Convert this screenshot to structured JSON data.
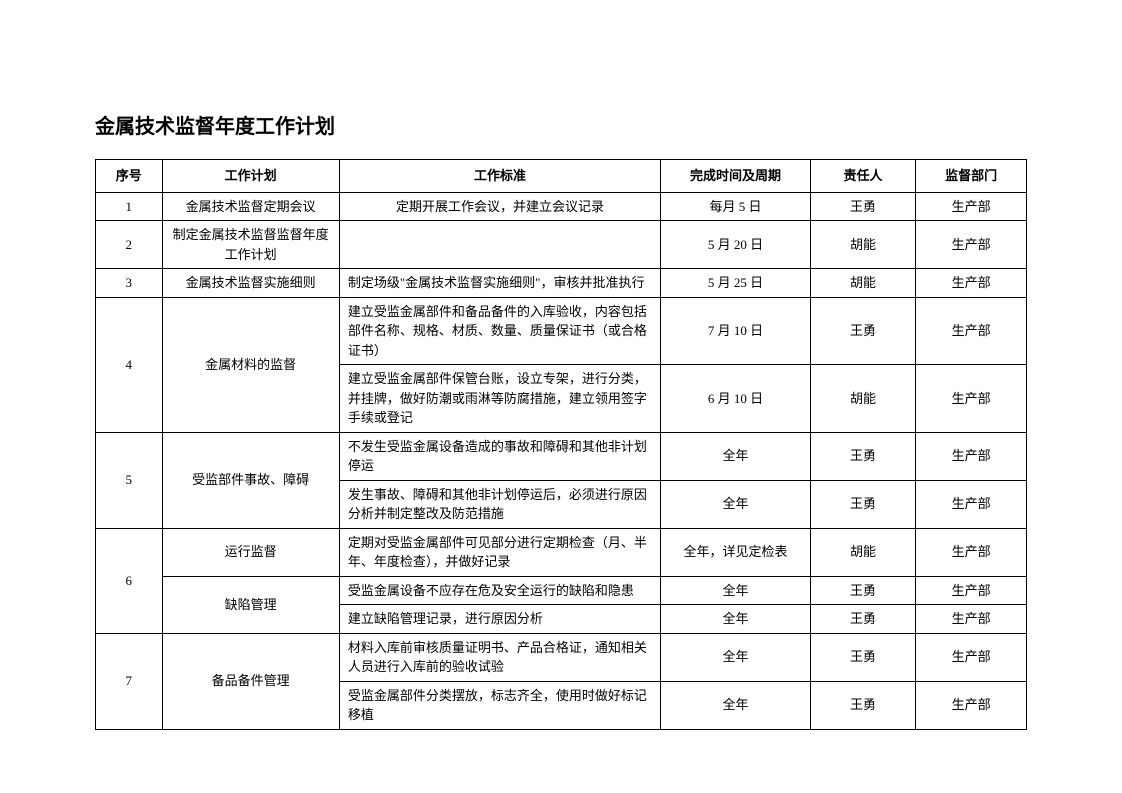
{
  "title": "金属技术监督年度工作计划",
  "headers": {
    "seq": "序号",
    "plan": "工作计划",
    "standard": "工作标准",
    "time": "完成时间及周期",
    "person": "责任人",
    "dept": "监督部门"
  },
  "rows": {
    "r1": {
      "seq": "1",
      "plan": "金属技术监督定期会议",
      "std": "定期开展工作会议，并建立会议记录",
      "time": "每月 5 日",
      "person": "王勇",
      "dept": "生产部"
    },
    "r2": {
      "seq": "2",
      "plan": "制定金属技术监督监督年度工作计划",
      "std": "",
      "time": "5 月 20 日",
      "person": "胡能",
      "dept": "生产部"
    },
    "r3": {
      "seq": "3",
      "plan": "金属技术监督实施细则",
      "std": "制定场级\"金属技术监督实施细则\"，审核并批准执行",
      "time": "5 月 25 日",
      "person": "胡能",
      "dept": "生产部"
    },
    "r4": {
      "seq": "4",
      "plan": "金属材料的监督",
      "a": {
        "std": "建立受监金属部件和备品备件的入库验收，内容包括部件名称、规格、材质、数量、质量保证书（或合格证书）",
        "time": "7 月 10 日",
        "person": "王勇",
        "dept": "生产部"
      },
      "b": {
        "std": "建立受监金属部件保管台账，设立专架，进行分类，并挂牌，做好防潮或雨淋等防腐措施，建立领用签字手续或登记",
        "time": "6 月 10 日",
        "person": "胡能",
        "dept": "生产部"
      }
    },
    "r5": {
      "seq": "5",
      "plan": "受监部件事故、障碍",
      "a": {
        "std": "不发生受监金属设备造成的事故和障碍和其他非计划停运",
        "time": "全年",
        "person": "王勇",
        "dept": "生产部"
      },
      "b": {
        "std": "发生事故、障碍和其他非计划停运后，必须进行原因分析并制定整改及防范措施",
        "time": "全年",
        "person": "王勇",
        "dept": "生产部"
      }
    },
    "r6": {
      "seq": "6",
      "plan_a": "运行监督",
      "plan_b": "缺陷管理",
      "a": {
        "std": "定期对受监金属部件可见部分进行定期检查（月、半年、年度检查），并做好记录",
        "time": "全年，详见定检表",
        "person": "胡能",
        "dept": "生产部"
      },
      "b": {
        "std": "受监金属设备不应存在危及安全运行的缺陷和隐患",
        "time": "全年",
        "person": "王勇",
        "dept": "生产部"
      },
      "c": {
        "std": "建立缺陷管理记录，进行原因分析",
        "time": "全年",
        "person": "王勇",
        "dept": "生产部"
      }
    },
    "r7": {
      "seq": "7",
      "plan": "备品备件管理",
      "a": {
        "std": "材料入库前审核质量证明书、产品合格证，通知相关人员进行入库前的验收试验",
        "time": "全年",
        "person": "王勇",
        "dept": "生产部"
      },
      "b": {
        "std": "受监金属部件分类摆放，标志齐全，使用时做好标记移植",
        "time": "全年",
        "person": "王勇",
        "dept": "生产部"
      }
    }
  }
}
